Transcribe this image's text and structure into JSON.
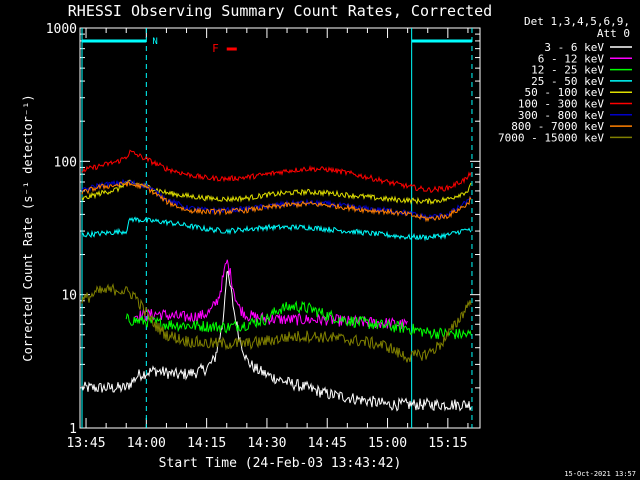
{
  "chart_data": {
    "type": "line",
    "title": "RHESSI Observing Summary Count Rates, Corrected",
    "xlabel": "Start Time (24-Feb-03 13:43:42)",
    "ylabel": "Corrected Count Rate (s⁻¹ detector⁻¹)",
    "yscale": "log",
    "ylim": [
      1,
      1000
    ],
    "xlim_minutes": [
      -1.5,
      98
    ],
    "x_ticks": [
      {
        "minute": 0,
        "label": "13:45"
      },
      {
        "minute": 15,
        "label": "14:00"
      },
      {
        "minute": 30,
        "label": "14:15"
      },
      {
        "minute": 45,
        "label": "14:30"
      },
      {
        "minute": 60,
        "label": "14:45"
      },
      {
        "minute": 75,
        "label": "15:00"
      },
      {
        "minute": 90,
        "label": "15:15"
      }
    ],
    "y_ticks": [
      {
        "value": 1,
        "label": "1"
      },
      {
        "value": 10,
        "label": "10"
      },
      {
        "value": 100,
        "label": "100"
      },
      {
        "value": 1000,
        "label": "1000"
      }
    ],
    "legend_header": [
      "Det 1,3,4,5,6,9,",
      "Att 0"
    ],
    "legend_position": "top-right",
    "footer_date": "15-Oct-2021 13:57",
    "night_bars": [
      {
        "start": -1.5,
        "end": 15,
        "label": "N"
      },
      {
        "start": 81,
        "end": 96,
        "label": ""
      }
    ],
    "flare_flag": {
      "label": "F",
      "start": 35,
      "end": 37.5
    },
    "vlines_solid": [
      -1,
      81
    ],
    "vlines_dashed": [
      15,
      96
    ],
    "series": [
      {
        "name": "3 - 6 keV",
        "color": "#ffffff",
        "x": [
          -1,
          3,
          8,
          10,
          13,
          15,
          17,
          20,
          23,
          27,
          30,
          32,
          34,
          35,
          36,
          37,
          38,
          40,
          42,
          45,
          50,
          55,
          60,
          65,
          70,
          75,
          80,
          85,
          90,
          96
        ],
        "y": [
          2.0,
          2.0,
          2.0,
          2.0,
          2.5,
          2.6,
          2.7,
          2.6,
          2.5,
          2.6,
          2.8,
          3.3,
          6.0,
          15.0,
          11.0,
          7.0,
          5.0,
          3.2,
          2.8,
          2.5,
          2.2,
          2.0,
          1.8,
          1.7,
          1.6,
          1.5,
          1.5,
          1.5,
          1.5,
          1.5
        ]
      },
      {
        "name": "6 - 12 keV",
        "color": "#ff00ff",
        "x": [
          12,
          15,
          18,
          20,
          23,
          26,
          29,
          31,
          33,
          34,
          35,
          36,
          37,
          38,
          40,
          42,
          45,
          50,
          55,
          60,
          65,
          70,
          75,
          78,
          80
        ],
        "y": [
          7.0,
          7.0,
          7.2,
          7.0,
          6.8,
          6.8,
          7.0,
          7.5,
          9.5,
          13.0,
          18.0,
          14.0,
          10.0,
          8.0,
          7.0,
          6.8,
          6.6,
          6.5,
          6.5,
          6.5,
          6.3,
          6.2,
          6.1,
          6.0,
          6.0
        ]
      },
      {
        "name": "12 - 25 keV",
        "color": "#00ff00",
        "x": [
          10,
          15,
          20,
          25,
          30,
          35,
          40,
          45,
          48,
          52,
          56,
          60,
          65,
          70,
          75,
          80,
          85,
          90,
          96
        ],
        "y": [
          6.5,
          6.3,
          6.0,
          5.9,
          5.8,
          5.7,
          6.0,
          6.6,
          7.8,
          8.2,
          7.8,
          7.0,
          6.4,
          6.1,
          5.8,
          5.6,
          5.2,
          5.1,
          5.0
        ]
      },
      {
        "name": "25 - 50 keV",
        "color": "#00ffff",
        "x": [
          -1,
          5,
          10,
          11,
          15,
          20,
          25,
          30,
          35,
          40,
          45,
          50,
          55,
          60,
          65,
          70,
          75,
          80,
          85,
          90,
          95,
          96
        ],
        "y": [
          28,
          29,
          30,
          37,
          36,
          35,
          33,
          31,
          30,
          31,
          32,
          32,
          32,
          31,
          30,
          29,
          28,
          27,
          27,
          28,
          31,
          28
        ]
      },
      {
        "name": "50 - 100 keV",
        "color": "#e0e000",
        "x": [
          -1,
          3,
          8,
          10,
          15,
          20,
          25,
          30,
          35,
          40,
          45,
          50,
          55,
          60,
          65,
          70,
          75,
          80,
          85,
          90,
          95,
          96
        ],
        "y": [
          52,
          57,
          62,
          70,
          65,
          58,
          55,
          53,
          52,
          53,
          56,
          58,
          59,
          58,
          56,
          54,
          52,
          51,
          50,
          52,
          60,
          68
        ]
      },
      {
        "name": "100 - 300 keV",
        "color": "#ff0000",
        "x": [
          -1,
          2,
          5,
          8,
          10,
          11,
          15,
          20,
          25,
          30,
          35,
          40,
          45,
          50,
          55,
          60,
          65,
          70,
          75,
          80,
          85,
          90,
          95,
          96
        ],
        "y": [
          85,
          90,
          95,
          100,
          108,
          118,
          104,
          88,
          80,
          75,
          74,
          76,
          80,
          85,
          88,
          87,
          82,
          76,
          70,
          65,
          61,
          63,
          75,
          88
        ]
      },
      {
        "name": "300 - 800 keV",
        "color": "#0000c8",
        "x": [
          -1,
          3,
          7,
          10,
          15,
          20,
          25,
          30,
          35,
          40,
          45,
          50,
          55,
          60,
          65,
          70,
          75,
          80,
          85,
          90,
          95,
          96
        ],
        "y": [
          60,
          66,
          68,
          70,
          66,
          52,
          45,
          43,
          43,
          44,
          46,
          48,
          49,
          48,
          46,
          44,
          43,
          41,
          38,
          40,
          50,
          58
        ]
      },
      {
        "name": "800 - 7000 keV",
        "color": "#ff8000",
        "x": [
          -1,
          3,
          7,
          10,
          15,
          20,
          25,
          30,
          35,
          40,
          45,
          50,
          55,
          60,
          65,
          70,
          75,
          80,
          85,
          90,
          95,
          96
        ],
        "y": [
          58,
          64,
          66,
          68,
          64,
          50,
          43,
          42,
          42,
          43,
          45,
          47,
          48,
          47,
          45,
          43,
          42,
          40,
          37,
          39,
          48,
          56
        ]
      },
      {
        "name": "7000 - 15000 keV",
        "color": "#808000",
        "x": [
          -1,
          3,
          8,
          12,
          14,
          17,
          20,
          25,
          30,
          35,
          40,
          45,
          50,
          55,
          60,
          65,
          70,
          75,
          78,
          80,
          85,
          88,
          90,
          92,
          94,
          96
        ],
        "y": [
          9.0,
          10.5,
          11.0,
          10.0,
          8.0,
          6.0,
          5.0,
          4.5,
          4.3,
          4.3,
          4.3,
          4.5,
          4.8,
          4.9,
          4.8,
          4.6,
          4.4,
          4.1,
          3.6,
          3.4,
          3.6,
          4.2,
          5.0,
          6.0,
          7.5,
          9.5
        ]
      }
    ]
  }
}
